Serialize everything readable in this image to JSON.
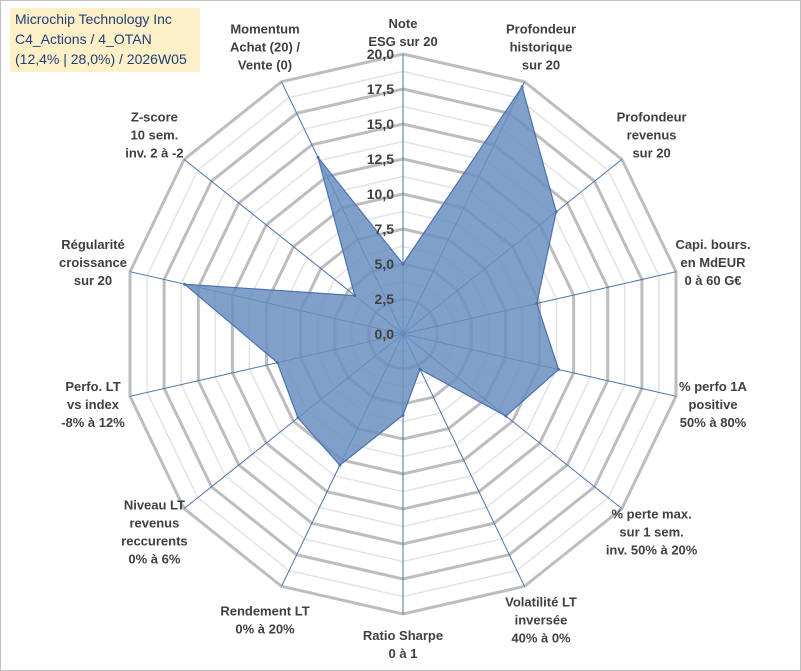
{
  "title": {
    "line1": "Microchip Technology Inc",
    "line2": "C4_Actions / 4_OTAN",
    "line3": "(12,4% | 28,0%) / 2026W05"
  },
  "chart_data": {
    "type": "radar",
    "ylim": [
      0,
      20
    ],
    "ticks": [
      "0,0",
      "2,5",
      "5,0",
      "7,5",
      "10,0",
      "12,5",
      "15,0",
      "17,5",
      "20,0"
    ],
    "tick_values": [
      0,
      2.5,
      5,
      7.5,
      10,
      12.5,
      15,
      17.5,
      20
    ],
    "grid": true,
    "colors": {
      "fill": "#6a8fc0",
      "line": "#4a72b0",
      "grid": "#c8c8c8",
      "axis": "#4a72b0"
    },
    "axes": [
      {
        "label": [
          "Note",
          "ESG sur 20"
        ],
        "value": 5.0
      },
      {
        "label": [
          "Profondeur",
          "historique",
          "sur 20"
        ],
        "value": 19.6
      },
      {
        "label": [
          "Profondeur",
          "revenus",
          "sur 20"
        ],
        "value": 14.0
      },
      {
        "label": [
          "Capi. bours.",
          "en MdEUR",
          "0 à 60 G€"
        ],
        "value": 9.8
      },
      {
        "label": [
          "% perfo 1A",
          "positive",
          "50% à 80%"
        ],
        "value": 11.4
      },
      {
        "label": [
          "% perte max.",
          "sur 1 sem.",
          "inv. 50% à 20%"
        ],
        "value": 9.4
      },
      {
        "label": [
          "Volatilité LT",
          "inversée",
          "40% à 0%"
        ],
        "value": 2.8
      },
      {
        "label": [
          "Ratio Sharpe",
          "0 à 1"
        ],
        "value": 5.8
      },
      {
        "label": [
          "Rendement LT",
          "0% à 20%"
        ],
        "value": 10.4
      },
      {
        "label": [
          "Niveau LT",
          "revenus",
          "reccurents",
          "0% à 6%"
        ],
        "value": 9.6
      },
      {
        "label": [
          "Perfo. LT",
          "vs index",
          "-8% à 12%"
        ],
        "value": 9.2
      },
      {
        "label": [
          "Régularité",
          "croissance",
          "sur 20"
        ],
        "value": 16.0
      },
      {
        "label": [
          "Z-score",
          "10 sem.",
          "inv. 2 à -2"
        ],
        "value": 4.4
      },
      {
        "label": [
          "Momentum",
          "Achat (20) /",
          "Vente (0)"
        ],
        "value": 14.0
      }
    ]
  }
}
